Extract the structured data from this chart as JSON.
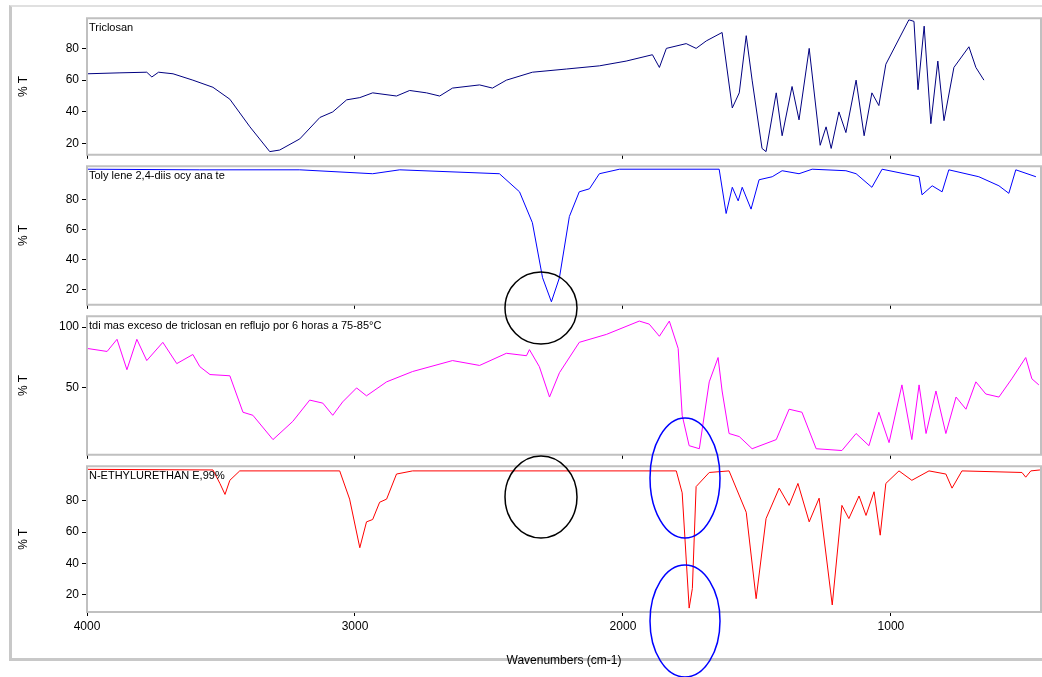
{
  "chart_data": [
    {
      "type": "line",
      "title": "Triclosan",
      "ylabel": "% T",
      "marker": "none",
      "tick_labels": "y",
      "xlim": [
        4000,
        440
      ],
      "xticks": [
        4000,
        3000,
        2000,
        1000
      ],
      "ylim": [
        13,
        99
      ],
      "yticks": [
        20,
        40,
        60,
        80
      ],
      "x": [
        4000,
        3877,
        3777,
        3758,
        3733,
        3679,
        3605,
        3530,
        3467,
        3392,
        3318,
        3281,
        3206,
        3131,
        3083,
        3031,
        2982,
        2934,
        2845,
        2796,
        2733,
        2684,
        2636,
        2535,
        2487,
        2435,
        2338,
        2211,
        2088,
        1988,
        1890,
        1864,
        1838,
        1764,
        1727,
        1689,
        1630,
        1592,
        1566,
        1540,
        1518,
        1481,
        1466,
        1428,
        1406,
        1369,
        1343,
        1305,
        1264,
        1242,
        1223,
        1194,
        1168,
        1130,
        1100,
        1071,
        1045,
        1019,
        933,
        914,
        899,
        876,
        851,
        825,
        802,
        765,
        709,
        683,
        653
      ],
      "series": [
        {
          "color": "#000080",
          "values": [
            64,
            64.6,
            65,
            62,
            65,
            64,
            60,
            55.5,
            48,
            30.6,
            15,
            16,
            23,
            36.5,
            40,
            47.6,
            49,
            52,
            50,
            53.5,
            52,
            50,
            55,
            57,
            55,
            60,
            65,
            67,
            69,
            72,
            76,
            68,
            80,
            83,
            80,
            84.7,
            90,
            42.5,
            52,
            88,
            60,
            17,
            15,
            52,
            25,
            56,
            35,
            80,
            19,
            30.6,
            17,
            40,
            27,
            60,
            25,
            52,
            44,
            70,
            98,
            97,
            54,
            94,
            32.6,
            72,
            34.5,
            68,
            81,
            68,
            60
          ]
        }
      ]
    },
    {
      "type": "line",
      "title": "Toly lene 2,4-diis ocy ana te",
      "ylabel": "% T",
      "marker": "none",
      "tick_labels": "y",
      "xlim": [
        4000,
        440
      ],
      "xticks": [
        4000,
        3000,
        2000,
        1000
      ],
      "ylim": [
        10,
        102
      ],
      "yticks": [
        20,
        40,
        60,
        80
      ],
      "x": [
        4000,
        3579,
        3206,
        2934,
        2833,
        2461,
        2386,
        2338,
        2300,
        2267,
        2237,
        2200,
        2163,
        2125,
        2088,
        2013,
        1641,
        1615,
        1592,
        1570,
        1555,
        1522,
        1492,
        1443,
        1406,
        1343,
        1294,
        1168,
        1130,
        1071,
        1033,
        895,
        884,
        846,
        809,
        784,
        672,
        597,
        560,
        534,
        459
      ],
      "series": [
        {
          "color": "#0000ff",
          "values": [
            100,
            99.6,
            99.6,
            97,
            99.6,
            97,
            85,
            64.5,
            28,
            12,
            28,
            68.6,
            85,
            87,
            97,
            100,
            100,
            70.6,
            88,
            79,
            88,
            73.5,
            93,
            95,
            99,
            97,
            100,
            99,
            97,
            88,
            100,
            95,
            83,
            89,
            85,
            99.6,
            95,
            89,
            84,
            99.6,
            95
          ]
        }
      ]
    },
    {
      "type": "line",
      "title": "tdi mas exceso de triclosan en reflujo por 6 horas a 75-85°C",
      "ylabel": "% T",
      "marker": "none",
      "tick_labels": "y",
      "xlim": [
        4000,
        440
      ],
      "xticks": [
        4000,
        3000,
        2000,
        1000
      ],
      "ylim": [
        -5,
        109
      ],
      "yticks": [
        50,
        100
      ],
      "x": [
        4000,
        3925,
        3888,
        3851,
        3814,
        3777,
        3717,
        3665,
        3605,
        3579,
        3541,
        3467,
        3418,
        3381,
        3306,
        3232,
        3169,
        3120,
        3083,
        3046,
        2994,
        2957,
        2882,
        2785,
        2636,
        2535,
        2435,
        2360,
        2349,
        2312,
        2274,
        2237,
        2163,
        2062,
        1939,
        1902,
        1864,
        1827,
        1794,
        1779,
        1753,
        1715,
        1678,
        1645,
        1630,
        1604,
        1566,
        1518,
        1428,
        1380,
        1332,
        1279,
        1183,
        1130,
        1082,
        1045,
        1007,
        959,
        922,
        895,
        869,
        832,
        795,
        757,
        720,
        683,
        646,
        597,
        549,
        497,
        474,
        448
      ],
      "series": [
        {
          "color": "#ff00ff",
          "values": [
            82.5,
            80,
            90,
            65,
            90,
            72.5,
            87.5,
            70,
            77.5,
            67.5,
            61,
            60,
            30,
            27.5,
            7.5,
            22.5,
            40,
            37.5,
            27.5,
            38.5,
            50,
            43.5,
            55,
            63.5,
            72.5,
            68.5,
            78.5,
            76.5,
            81.5,
            67.5,
            42.5,
            62.5,
            87.5,
            94,
            105,
            102.5,
            92.5,
            105,
            82.5,
            27.5,
            2.5,
            0,
            55,
            75,
            47.5,
            12.5,
            10,
            0,
            7.5,
            32.5,
            30,
            0,
            -1.5,
            12.5,
            2.5,
            30,
            5,
            52.5,
            7.5,
            52.5,
            12.5,
            47.5,
            12.5,
            42.5,
            32.5,
            55,
            45,
            42.5,
            57.5,
            75,
            57.5,
            52.5
          ]
        }
      ]
    },
    {
      "type": "line",
      "title": "N-ETHYLURETHAN E,99%",
      "ylabel": "% T",
      "xlabel": "Wavenumbers (cm-1)",
      "marker": "none",
      "xlim": [
        4000,
        440
      ],
      "xticks": [
        4000,
        3000,
        2000,
        1000
      ],
      "ylim": [
        9,
        102
      ],
      "yticks": [
        20,
        40,
        60,
        80
      ],
      "x": [
        4000,
        3530,
        3504,
        3485,
        3467,
        3430,
        3057,
        3020,
        2982,
        2957,
        2934,
        2908,
        2882,
        2845,
        2785,
        1801,
        1779,
        1753,
        1741,
        1727,
        1678,
        1604,
        1540,
        1503,
        1466,
        1417,
        1380,
        1347,
        1305,
        1268,
        1219,
        1183,
        1157,
        1119,
        1093,
        1063,
        1040,
        1019,
        970,
        922,
        858,
        795,
        772,
        735,
        511,
        497,
        478,
        444
      ],
      "series": [
        {
          "color": "#ff0000",
          "values": [
            100,
            99.6,
            91,
            84,
            93,
            99,
            99,
            81,
            50,
            66.5,
            68,
            79,
            81,
            97,
            99,
            99,
            85,
            11.5,
            24,
            89,
            98,
            99,
            72.6,
            17.5,
            68.6,
            88,
            77,
            91,
            66.5,
            81.6,
            13.5,
            77,
            68.6,
            83,
            70.6,
            85.7,
            58,
            91,
            99,
            93,
            99,
            97,
            88,
            99,
            98,
            95,
            99,
            99.6
          ]
        }
      ]
    }
  ]
}
